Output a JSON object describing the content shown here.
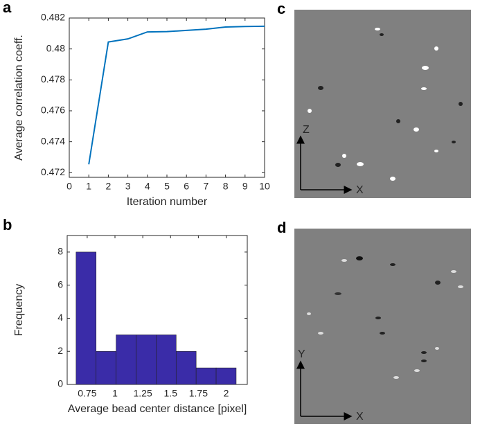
{
  "chart_data": [
    {
      "type": "line",
      "label": "a",
      "xlabel": "Iteration number",
      "ylabel": "Average correlation coeff.",
      "x": [
        1,
        2,
        3,
        4,
        5,
        6,
        7,
        8,
        9,
        10
      ],
      "values": [
        0.47254,
        0.48045,
        0.48065,
        0.4811,
        0.48112,
        0.4812,
        0.48128,
        0.48142,
        0.48145,
        0.48147
      ],
      "color": "#0072bd",
      "xlim": [
        0,
        10
      ],
      "xticks": [
        0,
        1,
        2,
        3,
        4,
        5,
        6,
        7,
        8,
        9,
        10
      ],
      "ylim": [
        0.4717,
        0.482
      ],
      "yticks": [
        0.472,
        0.474,
        0.476,
        0.478,
        0.48,
        0.482
      ]
    },
    {
      "type": "histogram",
      "label": "b",
      "xlabel": "Average bead center distance [pixel]",
      "ylabel": "Frequency",
      "bins": [
        0.65,
        0.83,
        1.01,
        1.19,
        1.37,
        1.55,
        1.73,
        1.91,
        2.09
      ],
      "values": [
        8,
        2,
        3,
        3,
        3,
        2,
        1,
        1
      ],
      "color": "#3a2ca8",
      "xlim": [
        0.57,
        2.19
      ],
      "xticks": [
        0.75,
        1,
        1.25,
        1.5,
        1.75,
        2
      ],
      "ylim": [
        0,
        9
      ],
      "yticks": [
        0,
        2,
        4,
        6,
        8
      ]
    }
  ],
  "images": [
    {
      "label": "c",
      "vertical_axis": "Z",
      "horizontal_axis": "X"
    },
    {
      "label": "d",
      "vertical_axis": "Y",
      "horizontal_axis": "X"
    }
  ]
}
